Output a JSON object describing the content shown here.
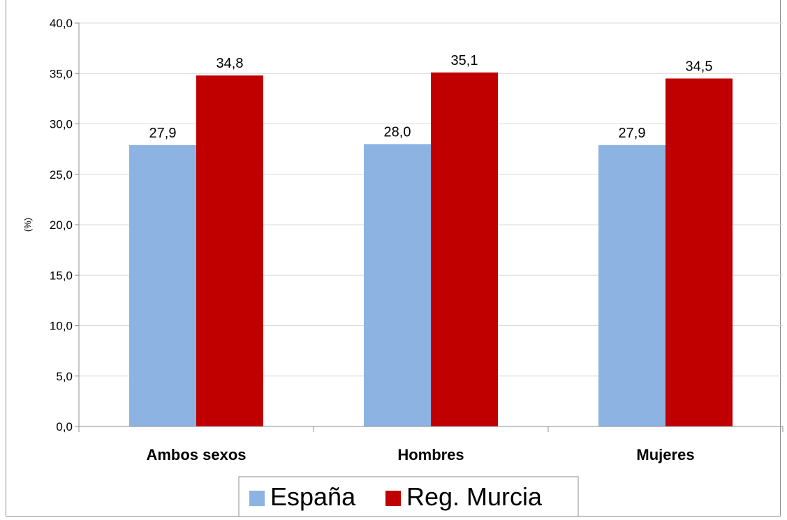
{
  "chart_data": {
    "type": "bar",
    "title": "",
    "xlabel": "",
    "ylabel": "(%)",
    "ylim": [
      0,
      40
    ],
    "y_ticks": [
      "0,0",
      "5,0",
      "10,0",
      "15,0",
      "20,0",
      "25,0",
      "30,0",
      "35,0",
      "40,0"
    ],
    "categories": [
      "Ambos sexos",
      "Hombres",
      "Mujeres"
    ],
    "series": [
      {
        "name": "España",
        "color": "#8db3e2",
        "values": [
          27.9,
          28.0,
          27.9
        ],
        "labels": [
          "27,9",
          "28,0",
          "27,9"
        ]
      },
      {
        "name": "Reg. Murcia",
        "color": "#c00000",
        "values": [
          34.8,
          35.1,
          34.5
        ],
        "labels": [
          "34,8",
          "35,1",
          "34,5"
        ]
      }
    ],
    "grid": true,
    "legend_position": "bottom"
  }
}
